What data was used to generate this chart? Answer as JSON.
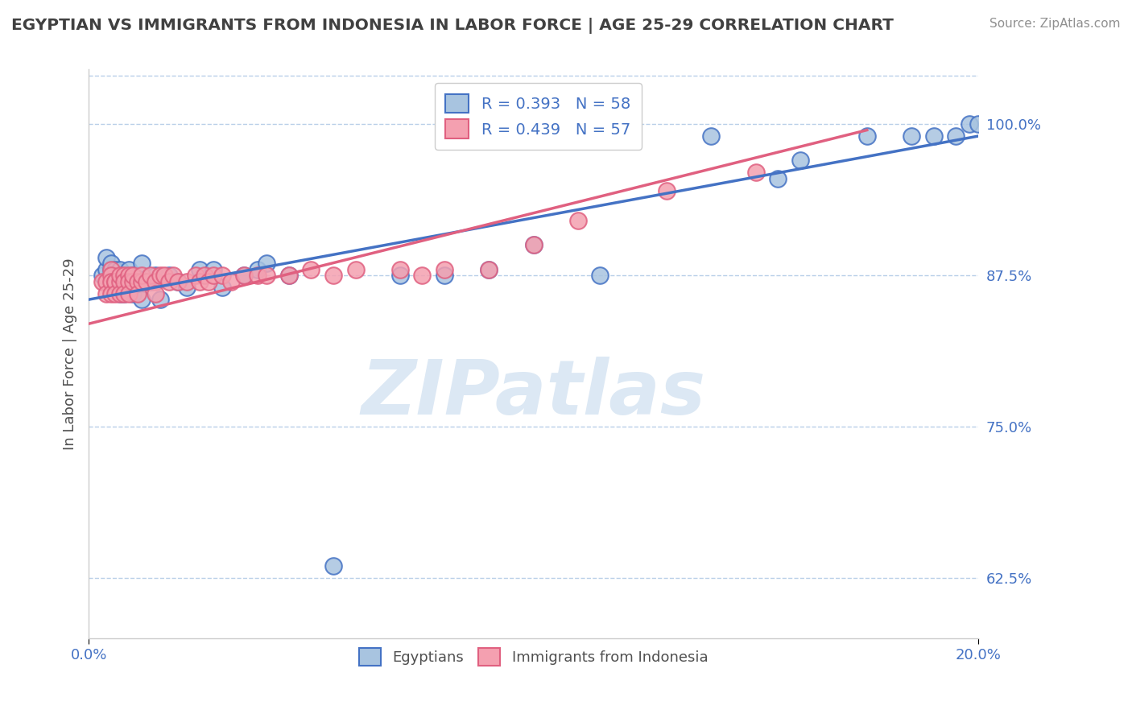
{
  "title": "EGYPTIAN VS IMMIGRANTS FROM INDONESIA IN LABOR FORCE | AGE 25-29 CORRELATION CHART",
  "source": "Source: ZipAtlas.com",
  "ylabel": "In Labor Force | Age 25-29",
  "ytick_labels": [
    "62.5%",
    "75.0%",
    "87.5%",
    "100.0%"
  ],
  "ytick_values": [
    0.625,
    0.75,
    0.875,
    1.0
  ],
  "xlim": [
    0.0,
    0.2
  ],
  "ylim": [
    0.575,
    1.045
  ],
  "blue_color": "#a8c4e0",
  "pink_color": "#f4a0b0",
  "blue_line_color": "#4472C4",
  "pink_line_color": "#E06080",
  "legend_blue_label": "R = 0.393   N = 58",
  "legend_pink_label": "R = 0.439   N = 57",
  "background_color": "#ffffff",
  "grid_color": "#b8cfe8",
  "title_color": "#404040",
  "axis_label_color": "#505050",
  "tick_color": "#4472C4",
  "source_color": "#909090",
  "watermark": "ZIPatlas",
  "watermark_color": "#dce8f4",
  "blue_scatter_x": [
    0.003,
    0.004,
    0.004,
    0.005,
    0.005,
    0.005,
    0.005,
    0.005,
    0.006,
    0.006,
    0.006,
    0.006,
    0.007,
    0.007,
    0.007,
    0.007,
    0.008,
    0.008,
    0.008,
    0.008,
    0.008,
    0.009,
    0.009,
    0.009,
    0.01,
    0.01,
    0.011,
    0.012,
    0.012,
    0.013,
    0.014,
    0.015,
    0.016,
    0.018,
    0.02,
    0.022,
    0.025,
    0.028,
    0.03,
    0.035,
    0.038,
    0.04,
    0.045,
    0.055,
    0.07,
    0.08,
    0.09,
    0.1,
    0.115,
    0.14,
    0.155,
    0.16,
    0.175,
    0.185,
    0.19,
    0.195,
    0.198,
    0.2
  ],
  "blue_scatter_y": [
    0.875,
    0.88,
    0.89,
    0.875,
    0.87,
    0.88,
    0.885,
    0.87,
    0.875,
    0.87,
    0.88,
    0.87,
    0.87,
    0.875,
    0.86,
    0.88,
    0.87,
    0.865,
    0.875,
    0.87,
    0.86,
    0.88,
    0.87,
    0.87,
    0.875,
    0.86,
    0.875,
    0.885,
    0.855,
    0.87,
    0.87,
    0.875,
    0.855,
    0.875,
    0.87,
    0.865,
    0.88,
    0.88,
    0.865,
    0.875,
    0.88,
    0.885,
    0.875,
    0.635,
    0.875,
    0.875,
    0.88,
    0.9,
    0.875,
    0.99,
    0.955,
    0.97,
    0.99,
    0.99,
    0.99,
    0.99,
    1.0,
    1.0
  ],
  "pink_scatter_x": [
    0.003,
    0.004,
    0.004,
    0.005,
    0.005,
    0.005,
    0.005,
    0.006,
    0.006,
    0.006,
    0.007,
    0.007,
    0.007,
    0.008,
    0.008,
    0.008,
    0.009,
    0.009,
    0.009,
    0.01,
    0.01,
    0.011,
    0.011,
    0.012,
    0.012,
    0.013,
    0.014,
    0.015,
    0.015,
    0.016,
    0.017,
    0.018,
    0.019,
    0.02,
    0.022,
    0.024,
    0.025,
    0.026,
    0.027,
    0.028,
    0.03,
    0.032,
    0.035,
    0.038,
    0.04,
    0.045,
    0.05,
    0.055,
    0.06,
    0.07,
    0.075,
    0.08,
    0.09,
    0.1,
    0.11,
    0.13,
    0.15
  ],
  "pink_scatter_y": [
    0.87,
    0.87,
    0.86,
    0.88,
    0.875,
    0.87,
    0.86,
    0.87,
    0.87,
    0.86,
    0.87,
    0.875,
    0.86,
    0.875,
    0.87,
    0.86,
    0.875,
    0.87,
    0.86,
    0.87,
    0.875,
    0.87,
    0.86,
    0.87,
    0.875,
    0.87,
    0.875,
    0.87,
    0.86,
    0.875,
    0.875,
    0.87,
    0.875,
    0.87,
    0.87,
    0.875,
    0.87,
    0.875,
    0.87,
    0.875,
    0.875,
    0.87,
    0.875,
    0.875,
    0.875,
    0.875,
    0.88,
    0.875,
    0.88,
    0.88,
    0.875,
    0.88,
    0.88,
    0.9,
    0.92,
    0.945,
    0.96
  ],
  "blue_trend_x0": 0.0,
  "blue_trend_y0": 0.855,
  "blue_trend_x1": 0.2,
  "blue_trend_y1": 0.99,
  "pink_trend_x0": 0.0,
  "pink_trend_y0": 0.835,
  "pink_trend_x1": 0.175,
  "pink_trend_y1": 0.995
}
